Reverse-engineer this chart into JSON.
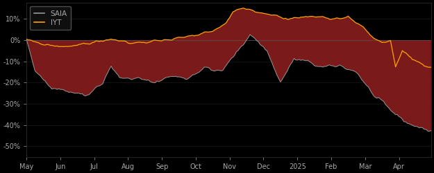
{
  "background_color": "#000000",
  "plot_bg_color": "#000000",
  "saia_color": "#999999",
  "iyt_color": "#FFA500",
  "fill_positive_color": "#1a6b5a",
  "fill_negative_color": "#7a1a1a",
  "legend_labels": [
    "SAIA",
    "IYT"
  ],
  "x_tick_labels": [
    "May",
    "Jun",
    "Jul",
    "Aug",
    "Sep",
    "Oct",
    "Nov",
    "Dec",
    "2025",
    "Feb",
    "Mar",
    "Apr"
  ],
  "ytick_labels": [
    "10%",
    "0%",
    "-10%",
    "-20%",
    "-30%",
    "-40%",
    "-50%"
  ],
  "ytick_values": [
    0.1,
    0.0,
    -0.1,
    -0.2,
    -0.3,
    -0.4,
    -0.5
  ],
  "ylim": [
    -0.55,
    0.175
  ],
  "num_points": 240
}
